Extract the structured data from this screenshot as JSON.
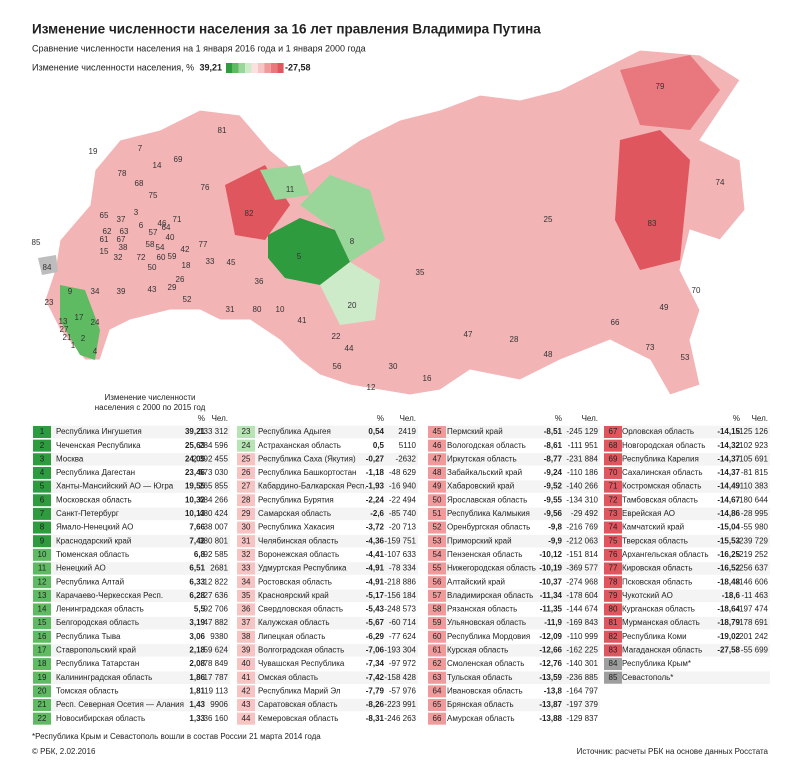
{
  "header": {
    "title": "Изменение численности населения за 16 лет правления Владимира Путина",
    "subtitle": "Сравнение численности населения на 1 января 2016 года и 1 января 2000 года"
  },
  "legend": {
    "label": "Изменение численности населения, %",
    "max": "39,21",
    "min": "-27,58",
    "colors": [
      "#2e9b3e",
      "#5fbb62",
      "#9ad69a",
      "#cdebc9",
      "#fbe0e0",
      "#f7c4c4",
      "#f09a9c",
      "#e8787d",
      "#e0565e"
    ]
  },
  "map": {
    "labels": [
      "79",
      "81",
      "19",
      "7",
      "14",
      "69",
      "11",
      "78",
      "68",
      "75",
      "76",
      "82",
      "83",
      "74",
      "25",
      "65",
      "3",
      "37",
      "6",
      "46",
      "71",
      "62",
      "63",
      "57",
      "61",
      "67",
      "38",
      "64",
      "40",
      "42",
      "77",
      "58",
      "54",
      "72",
      "32",
      "60",
      "59",
      "18",
      "15",
      "26",
      "33",
      "45",
      "5",
      "8",
      "35",
      "36",
      "29",
      "52",
      "43",
      "39",
      "34",
      "31",
      "80",
      "10",
      "41",
      "20",
      "22",
      "44",
      "56",
      "30",
      "12",
      "16",
      "47",
      "28",
      "48",
      "66",
      "73",
      "53",
      "49",
      "70",
      "9",
      "23",
      "17",
      "24",
      "13",
      "27",
      "21",
      "1",
      "2",
      "4",
      "85",
      "84",
      "50"
    ]
  },
  "table": {
    "note": [
      "Изменение численности",
      "населения с 2000 по 2015 год"
    ],
    "pct": "%",
    "abs": "Чел.",
    "rows": [
      [
        "1",
        "Республика Ингушетия",
        "39,21",
        "133 312"
      ],
      [
        "2",
        "Чеченская Республика",
        "25,63",
        "284 596"
      ],
      [
        "3",
        "Москва",
        "24,09",
        "2 392 455"
      ],
      [
        "4",
        "Республика Дагестан",
        "23,46",
        "573 030"
      ],
      [
        "5",
        "Ханты-Мансийский АО — Югра",
        "19,55",
        "265 855"
      ],
      [
        "6",
        "Московская область",
        "10,32",
        "684 266"
      ],
      [
        "7",
        "Санкт-Петербург",
        "10,13",
        "480 424"
      ],
      [
        "8",
        "Ямало-Ненецкий АО",
        "7,66",
        "38 007"
      ],
      [
        "9",
        "Краснодарский край",
        "7,42",
        "380 801"
      ],
      [
        "10",
        "Тюменская область",
        "6,8",
        "92 585"
      ],
      [
        "11",
        "Ненецкий АО",
        "6,51",
        "2681"
      ],
      [
        "12",
        "Республика Алтай",
        "6,33",
        "12 822"
      ],
      [
        "13",
        "Карачаево-Черкесская Респ.",
        "6,28",
        "27 636"
      ],
      [
        "14",
        "Ленинградская область",
        "5,5",
        "92 706"
      ],
      [
        "15",
        "Белгородская область",
        "3,19",
        "47 882"
      ],
      [
        "16",
        "Республика Тыва",
        "3,06",
        "9380"
      ],
      [
        "17",
        "Ставропольский край",
        "2,18",
        "59 624"
      ],
      [
        "18",
        "Республика Татарстан",
        "2,08",
        "78 849"
      ],
      [
        "19",
        "Калининградская область",
        "1,86",
        "17 787"
      ],
      [
        "20",
        "Томская область",
        "1,81",
        "19 113"
      ],
      [
        "21",
        "Респ. Северная Осетия — Алания",
        "1,43",
        "9906"
      ],
      [
        "22",
        "Новосибирская область",
        "1,33",
        "36 160"
      ],
      [
        "23",
        "Республика Адыгея",
        "0,54",
        "2419"
      ],
      [
        "24",
        "Астраханская область",
        "0,5",
        "5110"
      ],
      [
        "25",
        "Республика Саха (Якутия)",
        "-0,27",
        "-2632"
      ],
      [
        "26",
        "Республика Башкортостан",
        "-1,18",
        "-48 629"
      ],
      [
        "27",
        "Кабардино-Балкарская Респ.",
        "-1,93",
        "-16 940"
      ],
      [
        "28",
        "Республика Бурятия",
        "-2,24",
        "-22 494"
      ],
      [
        "29",
        "Самарская область",
        "-2,6",
        "-85 740"
      ],
      [
        "30",
        "Республика Хакасия",
        "-3,72",
        "-20 713"
      ],
      [
        "31",
        "Челябинская область",
        "-4,36",
        "-159 751"
      ],
      [
        "32",
        "Воронежская область",
        "-4,41",
        "-107 633"
      ],
      [
        "33",
        "Удмуртская Республика",
        "-4,91",
        "-78 334"
      ],
      [
        "34",
        "Ростовская область",
        "-4,91",
        "-218 886"
      ],
      [
        "35",
        "Красноярский край",
        "-5,17",
        "-156 184"
      ],
      [
        "36",
        "Свердловская область",
        "-5,43",
        "-248 573"
      ],
      [
        "37",
        "Калужская область",
        "-5,67",
        "-60 714"
      ],
      [
        "38",
        "Липецкая область",
        "-6,29",
        "-77 624"
      ],
      [
        "39",
        "Волгоградская область",
        "-7,06",
        "-193 304"
      ],
      [
        "40",
        "Чувашская Республика",
        "-7,34",
        "-97 972"
      ],
      [
        "41",
        "Омская область",
        "-7,42",
        "-158 428"
      ],
      [
        "42",
        "Республика Марий Эл",
        "-7,79",
        "-57 976"
      ],
      [
        "43",
        "Саратовская область",
        "-8,26",
        "-223 991"
      ],
      [
        "44",
        "Кемеровская область",
        "-8,31",
        "-246 263"
      ],
      [
        "45",
        "Пермский край",
        "-8,51",
        "-245 129"
      ],
      [
        "46",
        "Вологодская область",
        "-8,61",
        "-111 951"
      ],
      [
        "47",
        "Иркутская область",
        "-8,77",
        "-231 884"
      ],
      [
        "48",
        "Забайкальский край",
        "-9,24",
        "-110 186"
      ],
      [
        "49",
        "Хабаровский край",
        "-9,52",
        "-140 266"
      ],
      [
        "50",
        "Ярославская область",
        "-9,55",
        "-134 310"
      ],
      [
        "51",
        "Республика Калмыкия",
        "-9,56",
        "-29 492"
      ],
      [
        "52",
        "Оренбургская область",
        "-9,8",
        "-216 769"
      ],
      [
        "53",
        "Приморский край",
        "-9,9",
        "-212 063"
      ],
      [
        "54",
        "Пензенская область",
        "-10,12",
        "-151 814"
      ],
      [
        "55",
        "Нижегородская область",
        "-10,19",
        "-369 577"
      ],
      [
        "56",
        "Алтайский край",
        "-10,37",
        "-274 968"
      ],
      [
        "57",
        "Владимирская область",
        "-11,34",
        "-178 604"
      ],
      [
        "58",
        "Рязанская область",
        "-11,35",
        "-144 674"
      ],
      [
        "59",
        "Ульяновская область",
        "-11,9",
        "-169 843"
      ],
      [
        "60",
        "Республика Мордовия",
        "-12,09",
        "-110 999"
      ],
      [
        "61",
        "Курская область",
        "-12,66",
        "-162 225"
      ],
      [
        "62",
        "Смоленская область",
        "-12,76",
        "-140 301"
      ],
      [
        "63",
        "Тульская область",
        "-13,59",
        "-236 885"
      ],
      [
        "64",
        "Ивановская область",
        "-13,8",
        "-164 797"
      ],
      [
        "65",
        "Брянская область",
        "-13,87",
        "-197 379"
      ],
      [
        "66",
        "Амурская область",
        "-13,88",
        "-129 837"
      ],
      [
        "67",
        "Орловская область",
        "-14,15",
        "-125 126"
      ],
      [
        "68",
        "Новгородская область",
        "-14,32",
        "-102 923"
      ],
      [
        "69",
        "Республика Карелия",
        "-14,37",
        "-105 691"
      ],
      [
        "70",
        "Сахалинская область",
        "-14,37",
        "-81 815"
      ],
      [
        "71",
        "Костромская область",
        "-14,49",
        "-110 383"
      ],
      [
        "72",
        "Тамбовская область",
        "-14,67",
        "-180 644"
      ],
      [
        "73",
        "Еврейская АО",
        "-14,86",
        "-28 995"
      ],
      [
        "74",
        "Камчатский край",
        "-15,04",
        "-55 980"
      ],
      [
        "75",
        "Тверская область",
        "-15,53",
        "-239 729"
      ],
      [
        "76",
        "Архангельская область",
        "-16,25",
        "-219 252"
      ],
      [
        "77",
        "Кировская область",
        "-16,52",
        "-256 637"
      ],
      [
        "78",
        "Псковская область",
        "-18,48",
        "-146 606"
      ],
      [
        "79",
        "Чукотский АО",
        "-18,6",
        "-11 463"
      ],
      [
        "80",
        "Курганская область",
        "-18,64",
        "-197 474"
      ],
      [
        "81",
        "Мурманская область",
        "-18,79",
        "-178 691"
      ],
      [
        "82",
        "Республика Коми",
        "-19,02",
        "-201 242"
      ],
      [
        "83",
        "Магаданская область",
        "-27,58",
        "-55 699"
      ],
      [
        "84",
        "Республика Крым*"
      ],
      [
        "85",
        "Севастополь*"
      ]
    ]
  },
  "footer": {
    "footnote": "*Республика Крым и Севастополь вошли в состав России 21 марта 2014 года",
    "copyright": "© РБК, 2.02.2016",
    "source": "Источник: расчеты РБК на основе данных Росстата"
  }
}
